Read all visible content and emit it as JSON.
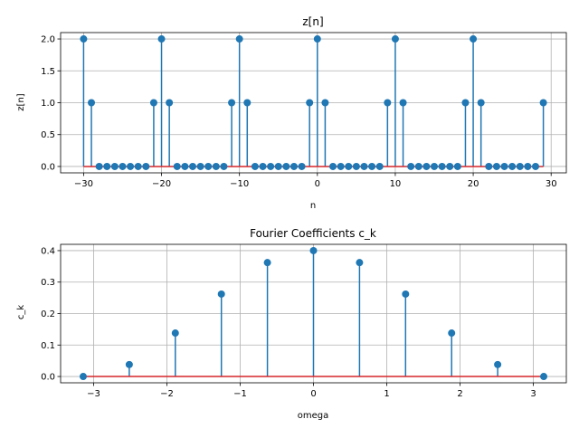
{
  "colors": {
    "stem": "#1f77b4",
    "baseline": "#d62728",
    "grid": "#b0b0b0",
    "axis": "#000000"
  },
  "chart_data": [
    {
      "type": "stem",
      "title": "z[n]",
      "xlabel": "n",
      "ylabel": "z[n]",
      "xlim": [
        -32.95,
        31.95
      ],
      "ylim": [
        -0.1,
        2.1
      ],
      "grid": true,
      "xticks": [
        -30,
        -20,
        -10,
        0,
        10,
        20,
        30
      ],
      "xtick_labels": [
        "−30",
        "−20",
        "−10",
        "0",
        "10",
        "20",
        "30"
      ],
      "yticks": [
        0.0,
        0.5,
        1.0,
        1.5,
        2.0
      ],
      "ytick_labels": [
        "0.0",
        "0.5",
        "1.0",
        "1.5",
        "2.0"
      ],
      "x": [
        -30,
        -29,
        -28,
        -27,
        -26,
        -25,
        -24,
        -23,
        -22,
        -21,
        -20,
        -19,
        -18,
        -17,
        -16,
        -15,
        -14,
        -13,
        -12,
        -11,
        -10,
        -9,
        -8,
        -7,
        -6,
        -5,
        -4,
        -3,
        -2,
        -1,
        0,
        1,
        2,
        3,
        4,
        5,
        6,
        7,
        8,
        9,
        10,
        11,
        12,
        13,
        14,
        15,
        16,
        17,
        18,
        19,
        20,
        21,
        22,
        23,
        24,
        25,
        26,
        27,
        28,
        29
      ],
      "y": [
        2,
        1,
        0,
        0,
        0,
        0,
        0,
        0,
        0,
        1,
        2,
        1,
        0,
        0,
        0,
        0,
        0,
        0,
        0,
        1,
        2,
        1,
        0,
        0,
        0,
        0,
        0,
        0,
        0,
        1,
        2,
        1,
        0,
        0,
        0,
        0,
        0,
        0,
        0,
        1,
        2,
        1,
        0,
        0,
        0,
        0,
        0,
        0,
        0,
        1,
        2,
        1,
        0,
        0,
        0,
        0,
        0,
        0,
        0,
        1
      ]
    },
    {
      "type": "stem",
      "title": "Fourier Coefficients c_k",
      "xlabel": "omega",
      "ylabel": "c_k",
      "xlim": [
        -3.45,
        3.45
      ],
      "ylim": [
        -0.02,
        0.42
      ],
      "grid": true,
      "xticks": [
        -3,
        -2,
        -1,
        0,
        1,
        2,
        3
      ],
      "xtick_labels": [
        "−3",
        "−2",
        "−1",
        "0",
        "1",
        "2",
        "3"
      ],
      "yticks": [
        0.0,
        0.1,
        0.2,
        0.3,
        0.4
      ],
      "ytick_labels": [
        "0.0",
        "0.1",
        "0.2",
        "0.3",
        "0.4"
      ],
      "x": [
        -3.1416,
        -2.5133,
        -1.885,
        -1.2566,
        -0.6283,
        0.0,
        0.6283,
        1.2566,
        1.885,
        2.5133,
        3.1416
      ],
      "y": [
        0.0,
        0.038,
        0.138,
        0.262,
        0.362,
        0.4,
        0.362,
        0.262,
        0.138,
        0.038,
        0.0
      ]
    }
  ]
}
